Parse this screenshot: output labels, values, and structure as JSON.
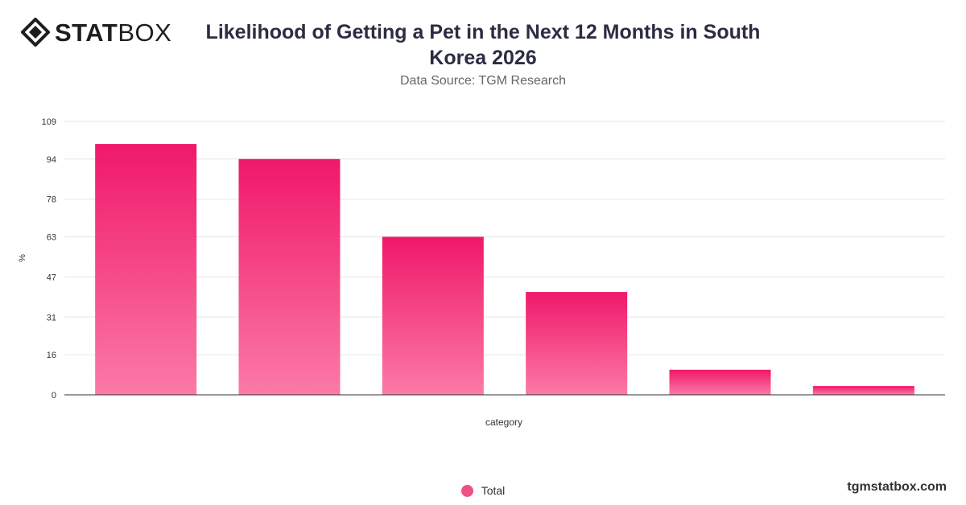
{
  "brand": {
    "name_bold": "STAT",
    "name_regular": "BOX",
    "site": "tgmstatbox.com"
  },
  "header": {
    "title": "Likelihood of Getting a Pet in the Next 12 Months in South Korea 2026",
    "subtitle": "Data Source: TGM Research"
  },
  "legend": {
    "label": "Total"
  },
  "colors": {
    "bar_top": "#f0186a",
    "bar_bottom": "#fb7aa6",
    "grid": "#e6e6e6",
    "axis": "#333333",
    "text": "#333333"
  },
  "chart_data": {
    "type": "bar",
    "categories": [
      "",
      "",
      "",
      "",
      "",
      ""
    ],
    "series": [
      {
        "name": "Total",
        "values": [
          100,
          94,
          63,
          41,
          10,
          3.5
        ]
      }
    ],
    "xlabel": "category",
    "ylabel": "%",
    "ylim": [
      0,
      109
    ],
    "yticks": [
      0,
      16,
      31,
      47,
      63,
      78,
      94,
      109
    ],
    "grid": true,
    "legend_position": "bottom"
  }
}
